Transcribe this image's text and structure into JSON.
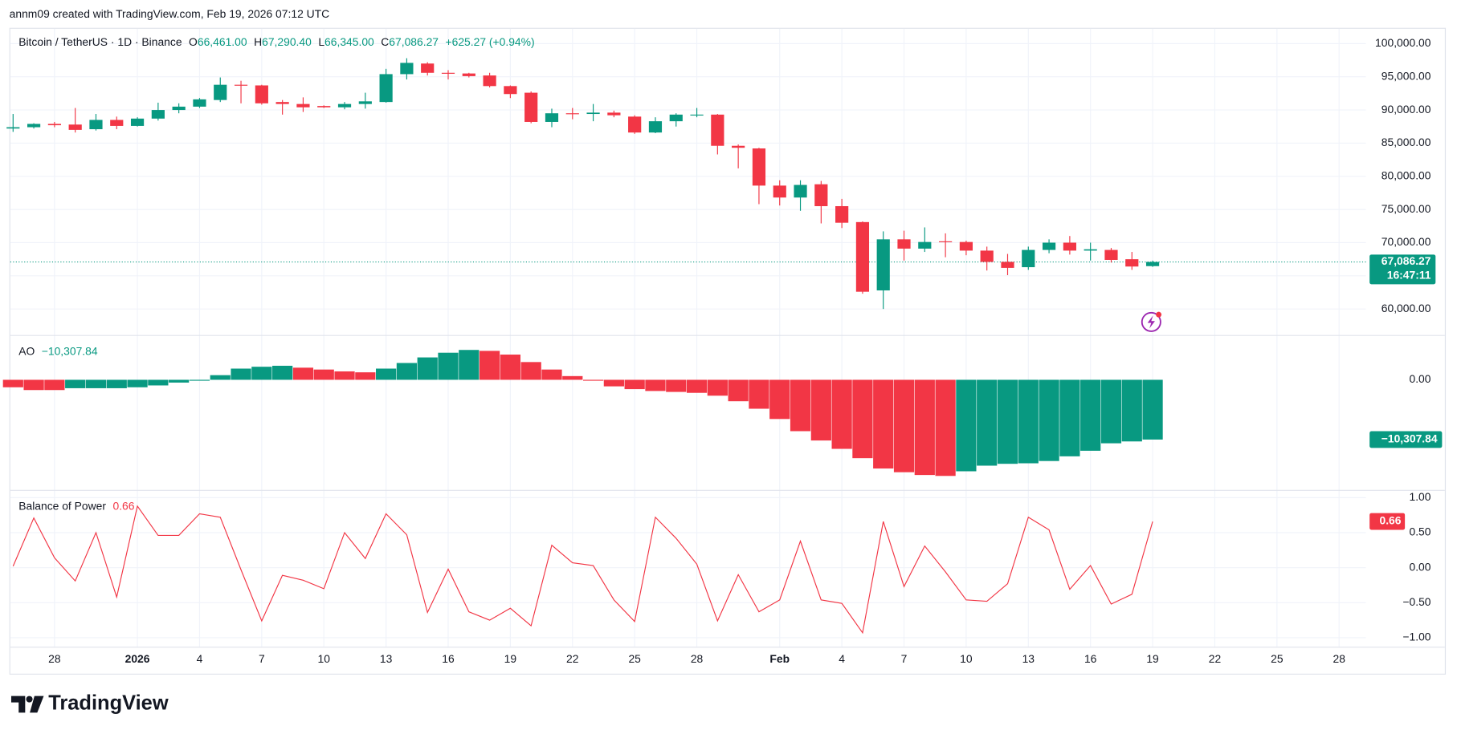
{
  "header": {
    "attribution": "annm09 created with TradingView.com, Feb 19, 2026 07:12 UTC"
  },
  "footer": {
    "brand": "TradingView"
  },
  "chart_data": [
    {
      "type": "candlestick",
      "title": "Bitcoin / TetherUS · 1D · Binance",
      "ohlc_legend": [
        {
          "key": "O",
          "value": "66,461.00"
        },
        {
          "key": "H",
          "value": "67,290.40"
        },
        {
          "key": "L",
          "value": "66,345.00"
        },
        {
          "key": "C",
          "value": "67,086.27"
        }
      ],
      "change_label": "+625.27 (+0.94%)",
      "last_price_label": "67,086.27",
      "countdown": "16:47:11",
      "up_color": "#089981",
      "down_color": "#f23645",
      "grid": true,
      "ylim": [
        56080,
        102380
      ],
      "yticks": [
        {
          "value": 60000,
          "label": "60,000.00"
        },
        {
          "value": 65000,
          "label": "65,000.00"
        },
        {
          "value": 70000,
          "label": "70,000.00"
        },
        {
          "value": 75000,
          "label": "75,000.00"
        },
        {
          "value": 80000,
          "label": "80,000.00"
        },
        {
          "value": 85000,
          "label": "85,000.00"
        },
        {
          "value": 90000,
          "label": "90,000.00"
        },
        {
          "value": 95000,
          "label": "95,000.00"
        },
        {
          "value": 100000,
          "label": "100,000.00"
        }
      ],
      "open": [
        87200,
        87400,
        87900,
        87800,
        87100,
        88500,
        87600,
        88700,
        90000,
        90500,
        91500,
        93800,
        93700,
        91200,
        90900,
        90600,
        90400,
        90900,
        91200,
        95400,
        97000,
        95600,
        95500,
        95200,
        93600,
        92600,
        88200,
        89500,
        89400,
        89600,
        89000,
        86600,
        88300,
        89200,
        89300,
        84600,
        84200,
        78600,
        76800,
        78800,
        75500,
        73100,
        62800,
        70500,
        69100,
        70200,
        70100,
        68800,
        67100,
        66300,
        68900,
        70000,
        68800,
        68900,
        67500,
        66461,
        null,
        null,
        null,
        null,
        null,
        null,
        null,
        null,
        null,
        null
      ],
      "high": [
        89400,
        88000,
        88200,
        90300,
        89400,
        89000,
        88900,
        91100,
        91000,
        91800,
        94900,
        94400,
        93800,
        91500,
        91900,
        90700,
        91200,
        92600,
        96200,
        97800,
        97200,
        96000,
        95600,
        95600,
        93700,
        92800,
        90200,
        90300,
        90900,
        89900,
        89200,
        88900,
        89500,
        90300,
        89400,
        84800,
        84300,
        79400,
        79400,
        79300,
        76600,
        73200,
        71700,
        71800,
        72300,
        71400,
        70300,
        69400,
        68300,
        69400,
        70500,
        71000,
        70000,
        69200,
        68600,
        67290.4,
        null,
        null,
        null,
        null,
        null,
        null,
        null,
        null,
        null,
        null
      ],
      "low": [
        86700,
        87200,
        87400,
        86600,
        86900,
        87100,
        87500,
        88400,
        89500,
        90300,
        91200,
        91000,
        90800,
        89300,
        89700,
        90300,
        90100,
        90200,
        91100,
        94600,
        95200,
        94600,
        94900,
        93400,
        91800,
        88000,
        87400,
        88600,
        88300,
        88900,
        86400,
        86500,
        87500,
        88900,
        83300,
        81200,
        75800,
        75600,
        74800,
        72900,
        72200,
        62300,
        60000,
        67300,
        68600,
        67800,
        68100,
        65800,
        65100,
        65900,
        68400,
        68200,
        67300,
        67000,
        65900,
        66345,
        null,
        null,
        null,
        null,
        null,
        null,
        null,
        null,
        null,
        null
      ],
      "close": [
        87400,
        87900,
        87700,
        87000,
        88500,
        87600,
        88700,
        90000,
        90500,
        91600,
        93800,
        93700,
        91000,
        90900,
        90400,
        90400,
        90900,
        91300,
        95400,
        97100,
        95600,
        95500,
        95100,
        93600,
        92400,
        88200,
        89500,
        89400,
        89600,
        89200,
        86600,
        88300,
        89300,
        89300,
        84600,
        84300,
        78600,
        76800,
        78700,
        75500,
        73000,
        62600,
        70500,
        69100,
        70100,
        70100,
        68800,
        67100,
        66200,
        68900,
        70000,
        68800,
        69000,
        67400,
        66400,
        67086.27,
        null,
        null,
        null,
        null,
        null,
        null,
        null,
        null,
        null,
        null
      ]
    },
    {
      "type": "bar",
      "title": "AO",
      "value_label": "−10,307.84",
      "grid": false,
      "ylim": [
        -19000,
        7730
      ],
      "yticks": [
        {
          "value": 0,
          "label": "0.00"
        }
      ],
      "values": [
        -1290,
        -1770,
        -1770,
        -1450,
        -1450,
        -1450,
        -1290,
        -970,
        -480,
        -160,
        800,
        1930,
        2250,
        2420,
        2090,
        1770,
        1450,
        1290,
        1930,
        2900,
        3860,
        4670,
        5150,
        4990,
        4350,
        3060,
        1770,
        640,
        -160,
        -1130,
        -1610,
        -1930,
        -2090,
        -2250,
        -2740,
        -3700,
        -4990,
        -6760,
        -8860,
        -10470,
        -11910,
        -13520,
        -15300,
        -15940,
        -16420,
        -16580,
        -15780,
        -14810,
        -14490,
        -14400,
        -14010,
        -13200,
        -12240,
        -10950,
        -10630,
        -10307.84,
        null,
        null,
        null,
        null,
        null,
        null,
        null,
        null,
        null,
        null
      ],
      "colors": [
        "#f23645",
        "#f23645",
        "#f23645",
        "#089981",
        "#089981",
        "#089981",
        "#089981",
        "#089981",
        "#089981",
        "#089981",
        "#089981",
        "#089981",
        "#089981",
        "#089981",
        "#f23645",
        "#f23645",
        "#f23645",
        "#f23645",
        "#089981",
        "#089981",
        "#089981",
        "#089981",
        "#089981",
        "#f23645",
        "#f23645",
        "#f23645",
        "#f23645",
        "#f23645",
        "#f23645",
        "#f23645",
        "#f23645",
        "#f23645",
        "#f23645",
        "#f23645",
        "#f23645",
        "#f23645",
        "#f23645",
        "#f23645",
        "#f23645",
        "#f23645",
        "#f23645",
        "#f23645",
        "#f23645",
        "#f23645",
        "#f23645",
        "#f23645",
        "#089981",
        "#089981",
        "#089981",
        "#089981",
        "#089981",
        "#089981",
        "#089981",
        "#089981",
        "#089981",
        "#089981",
        null,
        null,
        null,
        null,
        null,
        null,
        null,
        null,
        null,
        null
      ]
    },
    {
      "type": "line",
      "title": "Balance of Power",
      "value_label": "0.66",
      "color": "#f23645",
      "grid": true,
      "ylim": [
        -1.13,
        1.11
      ],
      "yticks": [
        {
          "value": -1,
          "label": "−1.00"
        },
        {
          "value": -0.5,
          "label": "−0.50"
        },
        {
          "value": 0,
          "label": "0.00"
        },
        {
          "value": 0.5,
          "label": "0.50"
        },
        {
          "value": 1,
          "label": "1.00"
        }
      ],
      "categories": [
        null,
        null,
        "28",
        null,
        null,
        null,
        "2026",
        null,
        null,
        "4",
        null,
        null,
        "7",
        null,
        null,
        "10",
        null,
        null,
        "13",
        null,
        null,
        "16",
        null,
        null,
        "19",
        null,
        null,
        "22",
        null,
        null,
        "25",
        null,
        null,
        "28",
        null,
        null,
        null,
        "Feb",
        null,
        null,
        "4",
        null,
        null,
        "7",
        null,
        null,
        "10",
        null,
        null,
        "13",
        null,
        null,
        "16",
        null,
        null,
        "19",
        null,
        null,
        "22",
        null,
        null,
        "25",
        null,
        null,
        "28",
        null
      ],
      "values": [
        0.02,
        0.71,
        0.14,
        -0.19,
        0.5,
        -0.42,
        0.88,
        0.46,
        0.46,
        0.77,
        0.72,
        -0.03,
        -0.76,
        -0.11,
        -0.18,
        -0.3,
        0.5,
        0.13,
        0.77,
        0.47,
        -0.64,
        -0.02,
        -0.63,
        -0.75,
        -0.58,
        -0.83,
        0.32,
        0.07,
        0.03,
        -0.46,
        -0.77,
        0.72,
        0.42,
        0.05,
        -0.76,
        -0.1,
        -0.63,
        -0.46,
        0.38,
        -0.46,
        -0.51,
        -0.93,
        0.66,
        -0.27,
        0.31,
        -0.06,
        -0.46,
        -0.48,
        -0.23,
        0.72,
        0.54,
        -0.31,
        0.03,
        -0.52,
        -0.38,
        0.66,
        null,
        null,
        null,
        null,
        null,
        null,
        null,
        null,
        null,
        null
      ]
    }
  ]
}
